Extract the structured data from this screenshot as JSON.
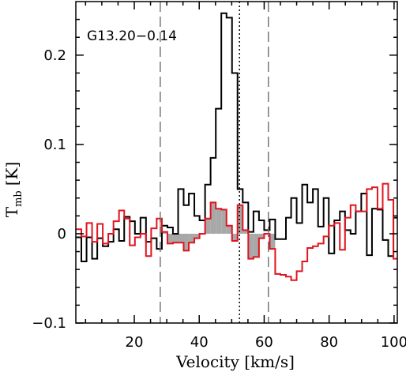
{
  "chart_data": {
    "type": "line",
    "title": "",
    "annotation": "G13.20−0.14",
    "xlabel": "Velocity [km/s]",
    "ylabel_main": "T",
    "ylabel_sub": "mb",
    "ylabel_unit": "[K]",
    "xlim": [
      2,
      101
    ],
    "ylim": [
      -0.1,
      0.26
    ],
    "xticks": [
      20,
      40,
      60,
      80,
      100
    ],
    "xtick_labels": [
      "20",
      "40",
      "60",
      "80",
      "100"
    ],
    "yticks": [
      -0.1,
      0,
      0.1,
      0.2
    ],
    "ytick_labels": [
      "−0.1",
      "0",
      "0.1",
      "0.2"
    ],
    "grid": false,
    "series": [
      {
        "color": "#000000",
        "style": "histogram",
        "x": [
          2,
          3.7,
          5.3,
          7,
          8.6,
          10.3,
          12,
          13.6,
          15.3,
          16.9,
          18.6,
          20.2,
          21.9,
          23.6,
          25.2,
          26.9,
          28.5,
          30.2,
          31.9,
          33.5,
          35.2,
          36.8,
          38.5,
          40.1,
          41.8,
          43.5,
          45.1,
          46.8,
          48.4,
          50.1,
          51.8,
          53.4,
          55.1,
          56.7,
          58.4,
          60,
          61.7,
          63.4,
          65,
          66.7,
          68.3,
          70,
          71.7,
          73.3,
          75,
          76.6,
          78.3,
          79.9,
          81.6,
          83.3,
          84.9,
          86.6,
          88.2,
          89.9,
          91.6,
          93.2,
          94.9,
          96.5,
          98.2,
          99.8,
          101
        ],
        "y": [
          -0.004,
          -0.031,
          -0.004,
          -0.028,
          -0.005,
          -0.014,
          -0.009,
          0.005,
          -0.008,
          0.019,
          0.014,
          0.0,
          0.018,
          -0.009,
          -0.005,
          -0.017,
          0.009,
          0.007,
          0.0,
          0.05,
          0.032,
          0.045,
          0.02,
          0.015,
          0.055,
          0.085,
          0.14,
          0.247,
          0.242,
          0.18,
          0.05,
          0.035,
          0.002,
          0.025,
          0.015,
          0.004,
          0.016,
          -0.006,
          -0.006,
          0.018,
          0.04,
          0.012,
          0.055,
          0.035,
          0.05,
          0.008,
          0.04,
          -0.022,
          0.015,
          0.025,
          0.004,
          0.0,
          0.025,
          0.045,
          -0.024,
          0.028,
          0.027,
          -0.007,
          -0.025,
          0.018,
          0.018
        ]
      },
      {
        "color": "#e0141e",
        "style": "histogram",
        "x": [
          2,
          3.7,
          5.3,
          7,
          8.6,
          10.3,
          12,
          13.6,
          15.3,
          16.9,
          18.6,
          20.2,
          21.9,
          23.6,
          25.2,
          26.9,
          28.5,
          30.2,
          31.9,
          33.5,
          35.2,
          36.8,
          38.5,
          40.1,
          41.8,
          43.5,
          45.1,
          46.8,
          48.4,
          50.1,
          51.8,
          53.4,
          55.1,
          56.7,
          58.4,
          60,
          61.7,
          63.4,
          65,
          66.7,
          68.3,
          70,
          71.7,
          73.3,
          75,
          76.6,
          78.3,
          79.9,
          81.6,
          83.3,
          84.9,
          86.6,
          88.2,
          89.9,
          91.6,
          93.2,
          94.9,
          96.5,
          98.2,
          99.8,
          101
        ],
        "y": [
          0.005,
          -0.003,
          0.012,
          -0.009,
          0.011,
          -0.011,
          0.0,
          0.014,
          0.026,
          0.017,
          -0.013,
          -0.004,
          0.0,
          -0.025,
          0.006,
          0.017,
          0.002,
          -0.011,
          -0.01,
          -0.01,
          -0.019,
          -0.01,
          -0.005,
          0.0,
          0.017,
          0.035,
          0.028,
          0.027,
          0.009,
          -0.008,
          0.032,
          0.004,
          -0.028,
          -0.026,
          -0.005,
          0.0,
          -0.017,
          -0.045,
          -0.046,
          -0.048,
          -0.052,
          -0.042,
          -0.031,
          -0.016,
          -0.014,
          -0.011,
          -0.003,
          0.009,
          0.012,
          -0.018,
          0.018,
          0.032,
          0.025,
          0.025,
          0.05,
          0.052,
          0.028,
          0.056,
          0.038,
          -0.028,
          -0.028
        ]
      }
    ],
    "fill_between": {
      "color": "#a8a8a8",
      "x_from": 27.8,
      "x_to": 63.4,
      "series": 1
    },
    "vlines": [
      {
        "x": 28,
        "style": "dashed",
        "color": "#777777"
      },
      {
        "x": 52.4,
        "style": "dotted",
        "color": "#000000"
      },
      {
        "x": 61.3,
        "style": "dashed",
        "color": "#777777"
      }
    ]
  }
}
